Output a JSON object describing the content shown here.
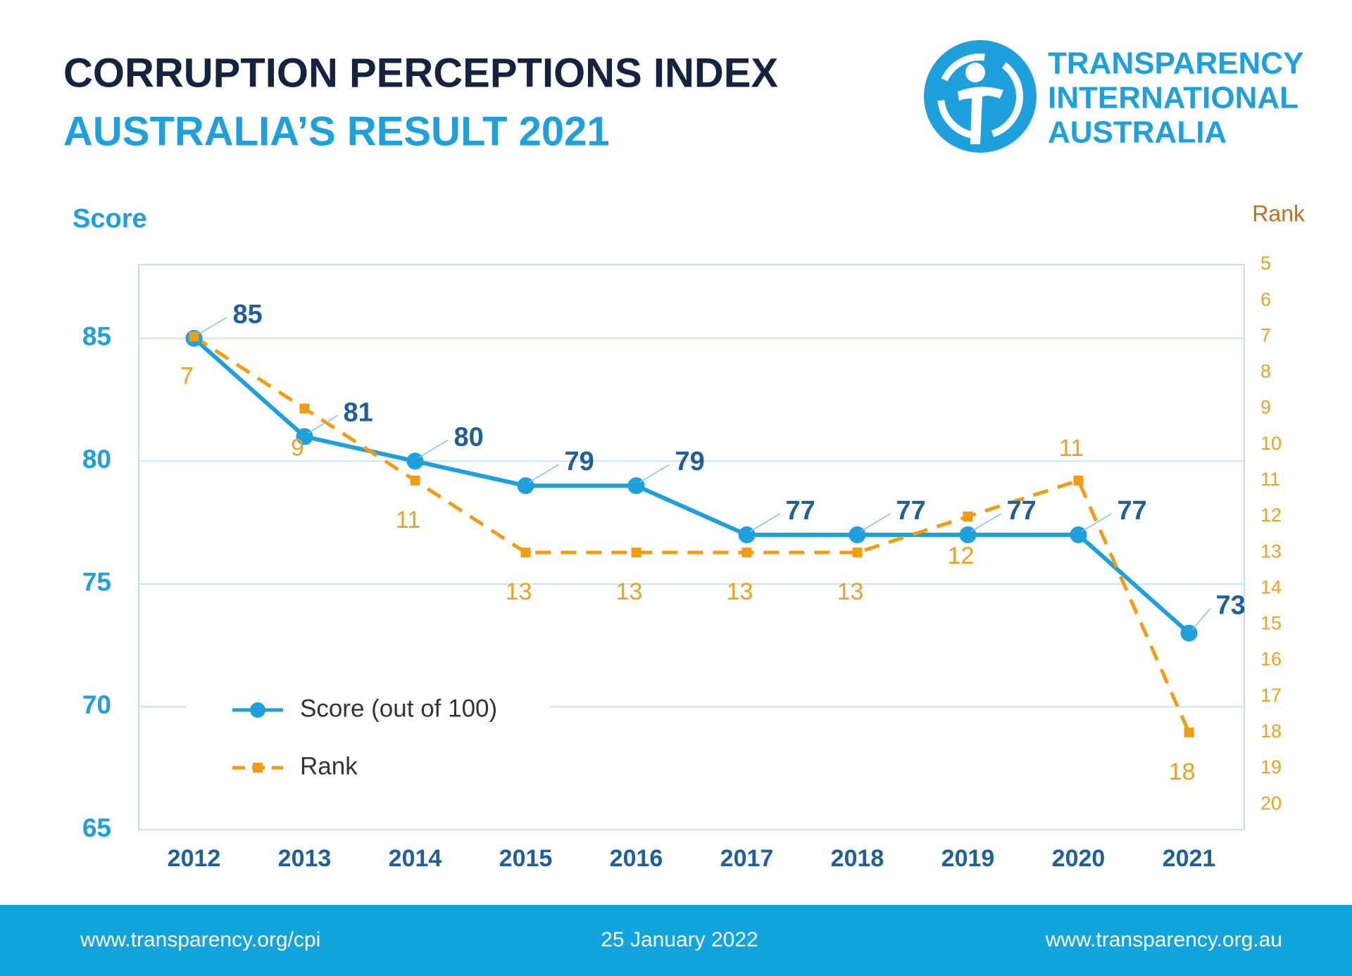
{
  "header": {
    "title": "CORRUPTION PERCEPTIONS INDEX",
    "subtitle": "AUSTRALIA’S RESULT 2021"
  },
  "logo": {
    "lines": [
      "TRANSPARENCY",
      "INTERNATIONAL",
      "AUSTRALIA"
    ]
  },
  "chart_data": {
    "type": "line",
    "y_label": "Score",
    "y2_label": "Rank",
    "categories": [
      "2012",
      "2013",
      "2014",
      "2015",
      "2016",
      "2017",
      "2018",
      "2019",
      "2020",
      "2021"
    ],
    "series": [
      {
        "name": "Score (out of 100)",
        "color": "#1ea0dc",
        "label_color": "#1f5f9c",
        "marker": "circle",
        "dashed": false,
        "values": [
          85,
          81,
          80,
          79,
          79,
          77,
          77,
          77,
          77,
          73
        ]
      },
      {
        "name": "Rank",
        "color": "#f39c12",
        "label_color": "#f0a020",
        "marker": "square",
        "dashed": true,
        "axis": "y2",
        "values": [
          7,
          9,
          11,
          13,
          13,
          13,
          13,
          12,
          11,
          18
        ]
      }
    ],
    "ylim": [
      65,
      88
    ],
    "yticks": [
      65,
      70,
      75,
      80,
      85
    ],
    "y2lim": [
      20.7,
      5
    ],
    "y2ticks": [
      5,
      6,
      7,
      8,
      9,
      10,
      11,
      12,
      13,
      14,
      15,
      16,
      17,
      18,
      19,
      20
    ],
    "grid": true,
    "legend": "lower left",
    "data_labels": true
  },
  "footer": {
    "left": "www.transparency.org/cpi",
    "center": "25 January 2022",
    "right": "www.transparency.org.au"
  }
}
